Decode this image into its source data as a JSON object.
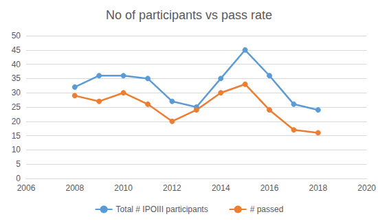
{
  "chart_data": {
    "type": "line",
    "title": "No of participants vs pass rate",
    "x": [
      2008,
      2009,
      2010,
      2011,
      2012,
      2013,
      2014,
      2015,
      2016,
      2017,
      2018
    ],
    "series": [
      {
        "name": "Total # IPOIII participants",
        "color": "#5b9bd5",
        "marker": "circle",
        "values": [
          32,
          36,
          36,
          35,
          27,
          25,
          35,
          45,
          36,
          26,
          24
        ]
      },
      {
        "name": "# passed",
        "color": "#ed7d31",
        "marker": "circle",
        "values": [
          29,
          27,
          30,
          26,
          20,
          24,
          30,
          33,
          24,
          17,
          16
        ]
      }
    ],
    "xlim": [
      2006,
      2020
    ],
    "xticks": [
      2006,
      2008,
      2010,
      2012,
      2014,
      2016,
      2018,
      2020
    ],
    "ylim": [
      0,
      50
    ],
    "yticks": [
      0,
      5,
      10,
      15,
      20,
      25,
      30,
      35,
      40,
      45,
      50
    ],
    "grid": true,
    "legend": "bottom"
  }
}
